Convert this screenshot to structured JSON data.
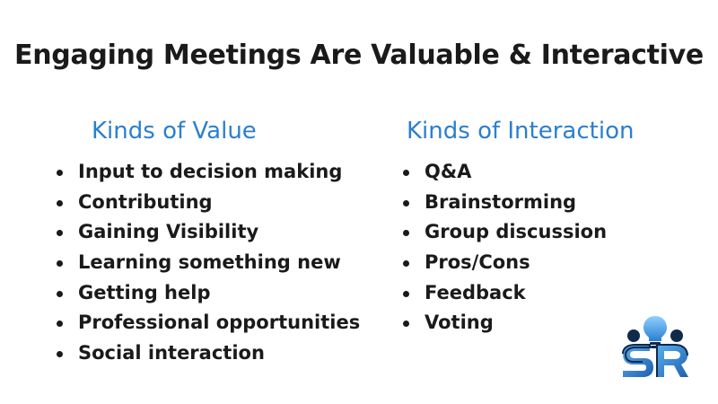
{
  "title": "Engaging Meetings Are Valuable & Interactive",
  "value": {
    "heading": "Kinds of Value",
    "items": [
      "Input to decision making",
      "Contributing",
      "Gaining Visibility",
      "Learning something new",
      "Getting help",
      "Professional opportunities",
      "Social interaction"
    ]
  },
  "interaction": {
    "heading": "Kinds of Interaction",
    "items": [
      "Q&A",
      "Brainstorming",
      "Group discussion",
      "Pros/Cons",
      "Feedback",
      "Voting"
    ]
  },
  "logo": {
    "icon": "people-lightbulb-logo-icon",
    "colors": {
      "navy": "#0f2a4a",
      "blue": "#2b7fd0",
      "light_blue": "#5ab0ee"
    }
  },
  "colors": {
    "heading": "#2b7fd0",
    "text": "#1a1a1a"
  }
}
